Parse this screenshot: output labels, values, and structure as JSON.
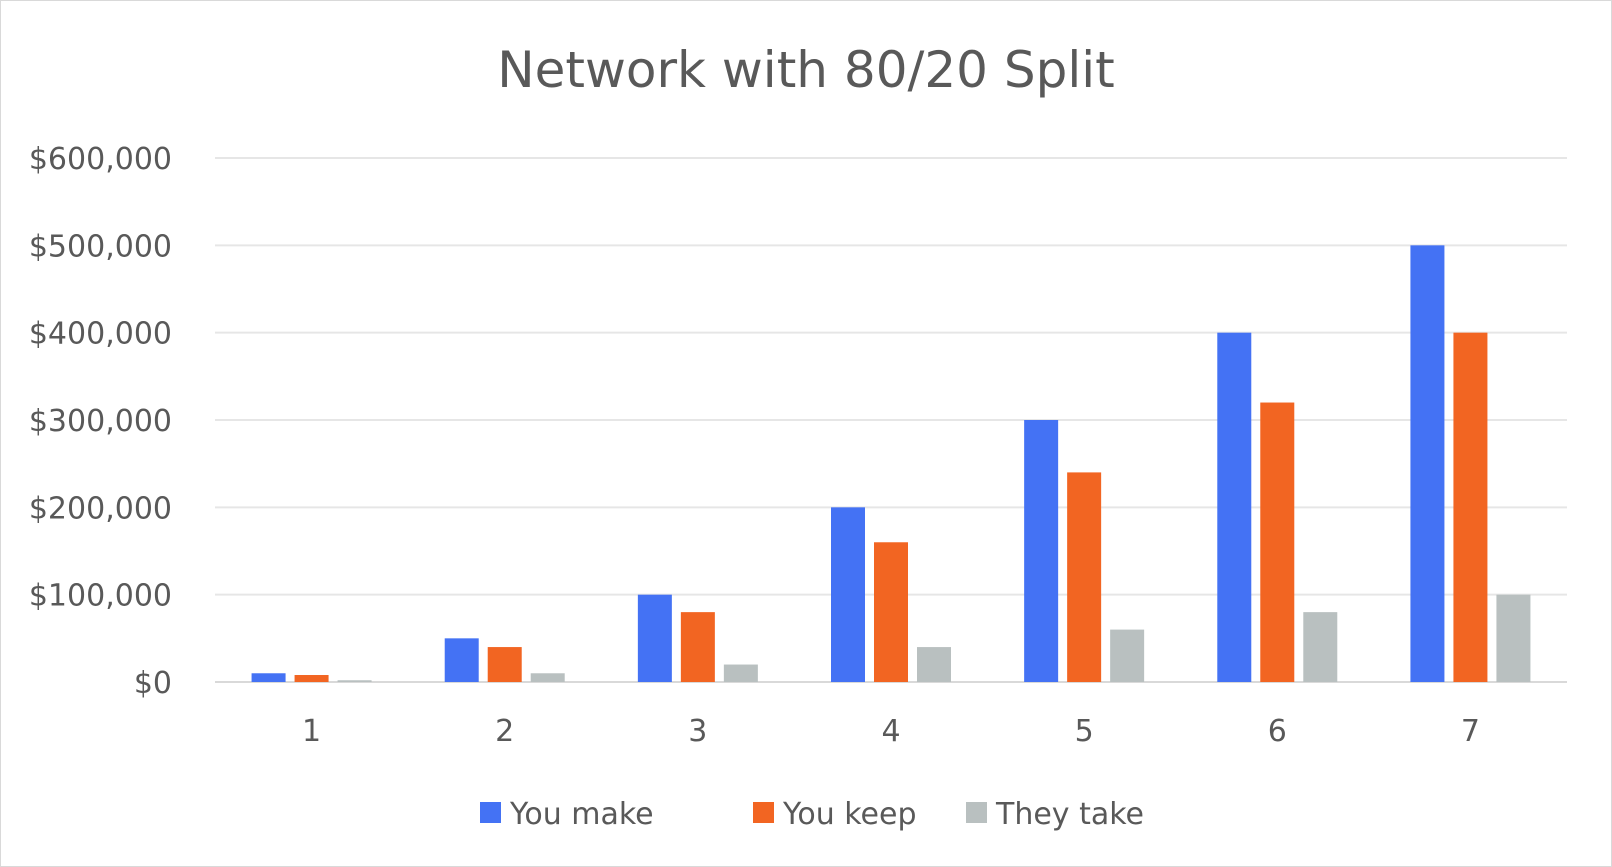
{
  "chart_data": {
    "type": "bar",
    "title": "Network with 80/20 Split",
    "xlabel": "",
    "ylabel": "",
    "categories": [
      "1",
      "2",
      "3",
      "4",
      "5",
      "6",
      "7"
    ],
    "series": [
      {
        "name": "You make",
        "color": "#4472f4",
        "values": [
          10000,
          50000,
          100000,
          200000,
          300000,
          400000,
          500000
        ]
      },
      {
        "name": "You keep",
        "color": "#f26522",
        "values": [
          8000,
          40000,
          80000,
          160000,
          240000,
          320000,
          400000
        ]
      },
      {
        "name": "They take",
        "color": "#b9c0c0",
        "values": [
          2000,
          10000,
          20000,
          40000,
          60000,
          80000,
          100000
        ]
      }
    ],
    "ylim": [
      0,
      600000
    ],
    "yticks": [
      "$0",
      "$100,000",
      "$200,000",
      "$300,000",
      "$400,000",
      "$500,000",
      "$600,000"
    ],
    "grid": true,
    "legend_position": "bottom"
  }
}
